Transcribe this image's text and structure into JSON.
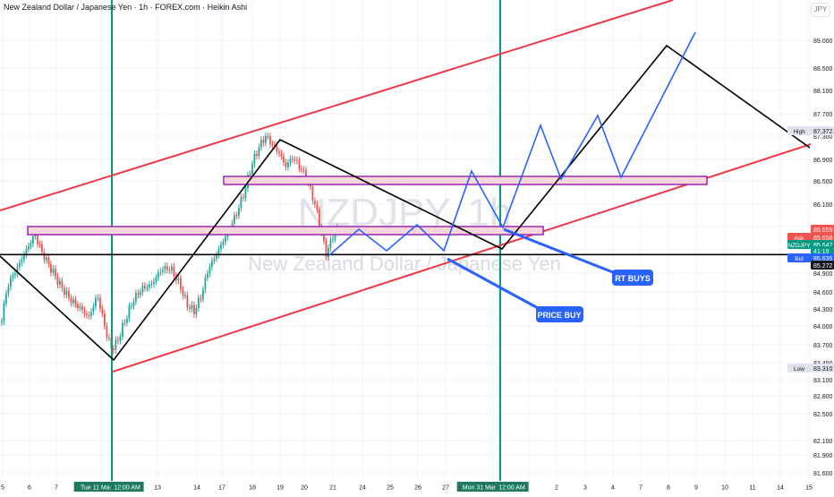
{
  "header": {
    "title": "New Zealand Dollar / Japanese Yen · 1h · FOREX.com · Heikin Ashi",
    "currency": "JPY"
  },
  "watermark": {
    "symbol": "NZDJPY, 1h",
    "name": "New Zealand Dollar / Japanese Yen"
  },
  "colors": {
    "channel": "#f23645",
    "structure": "#000000",
    "projection": "#2962ff",
    "zone_fill": "#f8d7da",
    "zone_border": "#9c27b0",
    "vline": "#089981",
    "bull": "#26a69a",
    "bear": "#ef5350",
    "annotation": "#2962ff"
  },
  "chart_data": {
    "type": "candlestick",
    "yaxis_ticks": [
      "89.000",
      "88.500",
      "88.100",
      "87.700",
      "87.300",
      "86.900",
      "86.500",
      "86.100",
      "85.700",
      "85.300",
      "84.900",
      "84.600",
      "84.300",
      "84.000",
      "83.700",
      "83.400",
      "83.100",
      "82.800",
      "82.500",
      "82.100",
      "81.900",
      "81.600"
    ],
    "xaxis_ticks": [
      "5",
      "6",
      "7",
      "Tue 11 Mar '25",
      "12:00 AM",
      "13",
      "14",
      "17",
      "18",
      "19",
      "20",
      "21",
      "24",
      "25",
      "26",
      "27",
      "Mon 31 Mar '25",
      "12:00 AM",
      "2",
      "3",
      "4",
      "7",
      "8",
      "9",
      "10",
      "11",
      "14",
      "15"
    ],
    "high_label": "High",
    "high_value": "87.372",
    "low_label": "Low",
    "low_value": "83.310",
    "price_labels": {
      "top": "85.659",
      "ask_label": "Ask",
      "ask_value": "85.658",
      "symbol_label": "NZDJPY",
      "symbol_value": "85.647",
      "countdown": "41:19",
      "bid_label": "Bid",
      "bid_value": "85.635",
      "level": "85.272"
    },
    "key_levels": [
      85.272
    ],
    "zones": [
      {
        "from": 85.58,
        "to": 85.7
      },
      {
        "from": 86.46,
        "to": 86.58
      }
    ],
    "annotations": [
      "RT BUYS",
      "PRICE BUY"
    ]
  }
}
